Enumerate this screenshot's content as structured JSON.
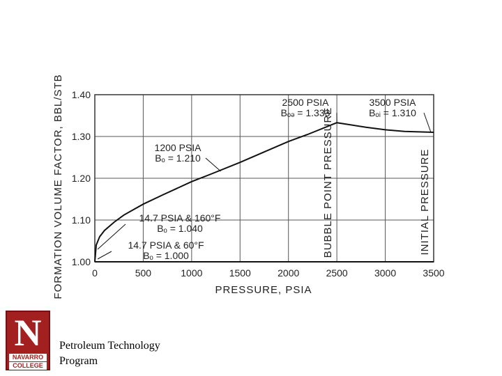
{
  "chart_data": {
    "type": "line",
    "xlabel": "PRESSURE, PSIA",
    "ylabel": "FORMATION VOLUME FACTOR, BBL/STB",
    "xlim": [
      0,
      3500
    ],
    "ylim": [
      1.0,
      1.4
    ],
    "x_ticks": [
      "0",
      "500",
      "1000",
      "1500",
      "2000",
      "2500",
      "3000",
      "3500"
    ],
    "y_ticks": [
      "1.00",
      "1.10",
      "1.20",
      "1.30",
      "1.40"
    ],
    "grid": true,
    "series": [
      {
        "x": [
          0,
          14.7,
          50,
          100,
          200,
          300,
          500,
          700,
          1000,
          1200,
          1500,
          1800,
          2000,
          2200,
          2500,
          2800,
          3000,
          3200,
          3500
        ],
        "y": [
          1.0,
          1.04,
          1.06,
          1.075,
          1.095,
          1.112,
          1.138,
          1.16,
          1.192,
          1.21,
          1.238,
          1.268,
          1.288,
          1.305,
          1.333,
          1.322,
          1.316,
          1.312,
          1.31
        ]
      },
      {
        "x": [
          0,
          14.7,
          500,
          1000,
          1500,
          2000,
          2500,
          3000,
          3500
        ],
        "y": [
          1.0,
          1.0,
          1.0,
          1.0,
          1.0,
          1.0,
          1.0,
          1.0,
          1.0
        ]
      }
    ],
    "annotations": [
      {
        "lines": [
          "2500 PSIA",
          "Bₒₔ = 1.333"
        ],
        "x": 2500,
        "y": 1.333
      },
      {
        "lines": [
          "3500 PSIA",
          "Bₒᵢ = 1.310"
        ],
        "x": 3500,
        "y": 1.31
      },
      {
        "lines": [
          "1200 PSIA",
          "Bₒ = 1.210"
        ],
        "x": 1200,
        "y": 1.21
      },
      {
        "lines": [
          "14.7 PSIA & 160°F",
          "Bₒ = 1.040"
        ],
        "x": 14.7,
        "y": 1.04
      },
      {
        "lines": [
          "14.7 PSIA & 60°F",
          "Bₒ = 1.000"
        ],
        "x": 14.7,
        "y": 1.0
      }
    ],
    "vertical_labels": [
      {
        "text": "BUBBLE POINT PRESSURE",
        "x": 2500
      },
      {
        "text": "INITIAL PRESSURE",
        "x": 3500
      }
    ]
  },
  "branding": {
    "logo_letter": "N",
    "logo_line1": "NAVARRO",
    "logo_line2": "COLLEGE",
    "caption_line1": "Petroleum Technology",
    "caption_line2": "Program"
  }
}
